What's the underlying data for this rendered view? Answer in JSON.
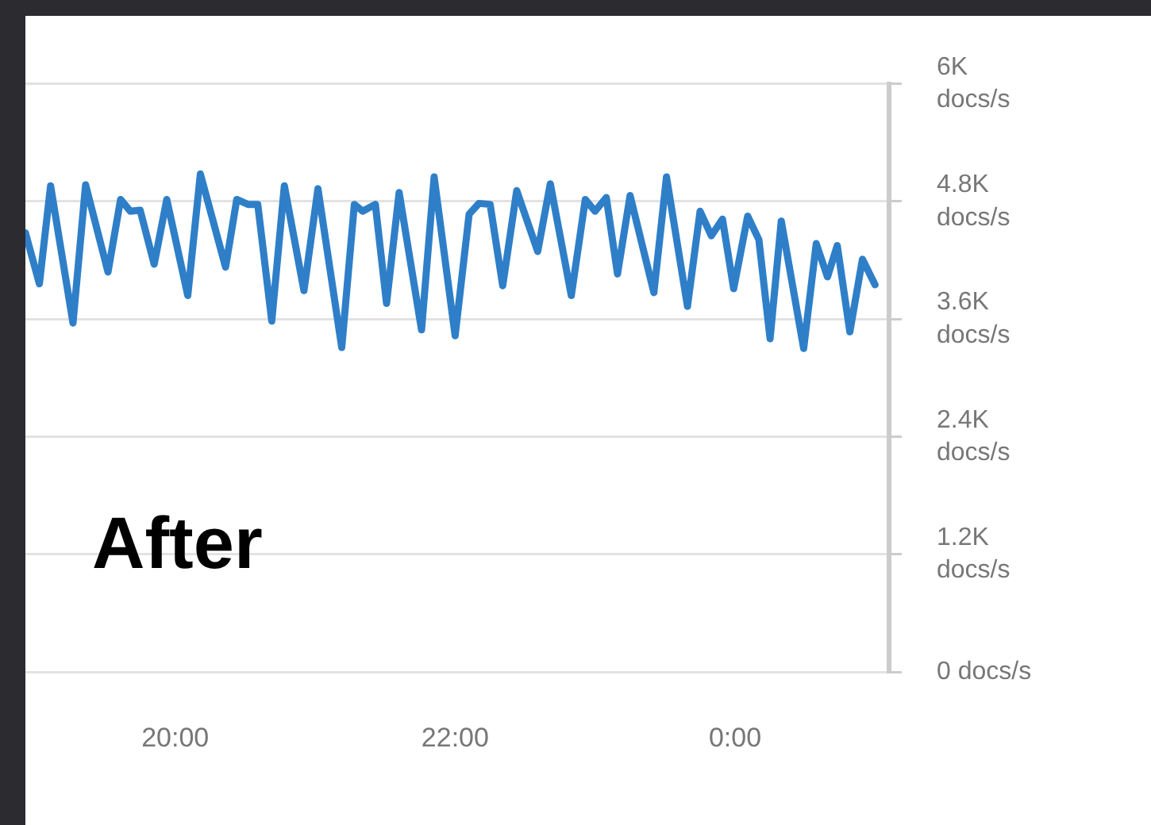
{
  "chart_data": {
    "type": "line",
    "annotations": [
      "After"
    ],
    "x": [
      18.93,
      19.03,
      19.11,
      19.27,
      19.36,
      19.52,
      19.61,
      19.68,
      19.75,
      19.85,
      19.94,
      20.09,
      20.18,
      20.36,
      20.44,
      20.52,
      20.59,
      20.69,
      20.78,
      20.92,
      21.02,
      21.19,
      21.28,
      21.34,
      21.43,
      21.51,
      21.6,
      21.76,
      21.85,
      22.0,
      22.1,
      22.17,
      22.25,
      22.34,
      22.44,
      22.59,
      22.68,
      22.83,
      22.93,
      23.0,
      23.08,
      23.16,
      23.25,
      23.42,
      23.51,
      23.66,
      23.75,
      23.83,
      23.91,
      23.99,
      24.09,
      24.17,
      24.25,
      24.33,
      24.49,
      24.58,
      24.66,
      24.73,
      24.82,
      24.91,
      25.0
    ],
    "series": [
      {
        "color": "#2f7fc8",
        "values": [
          4480,
          3960,
          4960,
          3560,
          4970,
          4080,
          4820,
          4700,
          4710,
          4160,
          4820,
          3840,
          5080,
          4130,
          4820,
          4770,
          4770,
          3580,
          4960,
          3890,
          4930,
          3310,
          4770,
          4700,
          4770,
          3760,
          4890,
          3490,
          5050,
          3430,
          4670,
          4780,
          4770,
          3940,
          4910,
          4290,
          4980,
          3840,
          4820,
          4700,
          4840,
          4060,
          4860,
          3870,
          5050,
          3730,
          4700,
          4450,
          4620,
          3910,
          4650,
          4410,
          3400,
          4600,
          3300,
          4370,
          4030,
          4350,
          3470,
          4210,
          3950
        ]
      }
    ],
    "xlim": [
      18.93,
      25.1
    ],
    "xticks": [
      {
        "value": 20,
        "label": "20:00"
      },
      {
        "value": 22,
        "label": "22:00"
      },
      {
        "value": 24,
        "label": "0:00"
      }
    ],
    "ylim": [
      0,
      6000
    ],
    "yticks": [
      {
        "value": 0,
        "label": "0 docs/s"
      },
      {
        "value": 1200,
        "label": "1.2K\ndocs/s"
      },
      {
        "value": 2400,
        "label": "2.4K\ndocs/s"
      },
      {
        "value": 3600,
        "label": "3.6K\ndocs/s"
      },
      {
        "value": 4800,
        "label": "4.8K\ndocs/s"
      },
      {
        "value": 6000,
        "label": "6K\ndocs/s"
      }
    ],
    "grid": "y",
    "legend": false,
    "marker": "none",
    "line_style": "solid"
  }
}
